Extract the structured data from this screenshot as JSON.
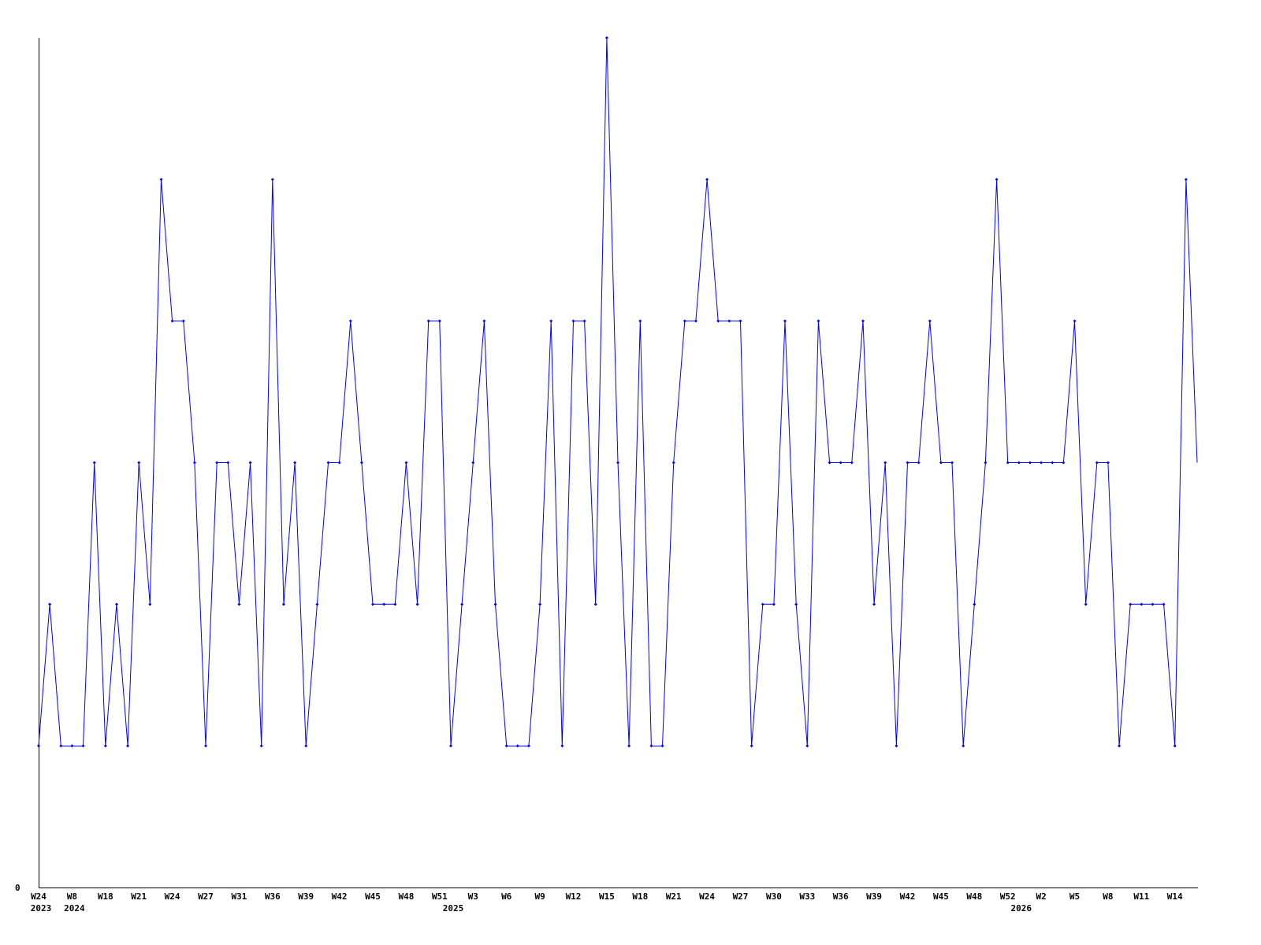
{
  "chart_data": {
    "type": "line",
    "title": "",
    "xlabel": "",
    "ylabel": "",
    "ylim": [
      0,
      6
    ],
    "y_tick_labels": [
      "0"
    ],
    "grid": false,
    "line_color": "#0000ff",
    "axis_color": "#000000",
    "values": [
      1,
      2,
      1,
      1,
      1,
      3,
      1,
      2,
      1,
      3,
      2,
      5,
      4,
      4,
      3,
      1,
      3,
      3,
      2,
      3,
      1,
      5,
      2,
      3,
      1,
      2,
      3,
      3,
      4,
      3,
      2,
      2,
      2,
      3,
      2,
      4,
      4,
      1,
      2,
      3,
      4,
      2,
      1,
      1,
      1,
      2,
      4,
      1,
      4,
      4,
      2,
      6,
      3,
      1,
      4,
      1,
      1,
      3,
      4,
      4,
      5,
      4,
      4,
      4,
      1,
      2,
      2,
      4,
      2,
      1,
      4,
      3,
      3,
      3,
      4,
      2,
      3,
      1,
      3,
      3,
      4,
      3,
      3,
      1,
      2,
      3,
      5,
      3,
      3,
      3,
      3,
      3,
      3,
      4,
      2,
      3,
      3,
      1,
      2,
      2,
      2,
      2,
      1,
      5,
      3
    ],
    "x_ticks": [
      {
        "index": 0,
        "label": "W24"
      },
      {
        "index": 3,
        "label": "W8"
      },
      {
        "index": 6,
        "label": "W18"
      },
      {
        "index": 9,
        "label": "W21"
      },
      {
        "index": 12,
        "label": "W24"
      },
      {
        "index": 15,
        "label": "W27"
      },
      {
        "index": 18,
        "label": "W31"
      },
      {
        "index": 21,
        "label": "W36"
      },
      {
        "index": 24,
        "label": "W39"
      },
      {
        "index": 27,
        "label": "W42"
      },
      {
        "index": 30,
        "label": "W45"
      },
      {
        "index": 33,
        "label": "W48"
      },
      {
        "index": 36,
        "label": "W51"
      },
      {
        "index": 39,
        "label": "W3"
      },
      {
        "index": 42,
        "label": "W6"
      },
      {
        "index": 45,
        "label": "W9"
      },
      {
        "index": 48,
        "label": "W12"
      },
      {
        "index": 51,
        "label": "W15"
      },
      {
        "index": 54,
        "label": "W18"
      },
      {
        "index": 57,
        "label": "W21"
      },
      {
        "index": 60,
        "label": "W24"
      },
      {
        "index": 63,
        "label": "W27"
      },
      {
        "index": 66,
        "label": "W30"
      },
      {
        "index": 69,
        "label": "W33"
      },
      {
        "index": 72,
        "label": "W36"
      },
      {
        "index": 75,
        "label": "W39"
      },
      {
        "index": 78,
        "label": "W42"
      },
      {
        "index": 81,
        "label": "W45"
      },
      {
        "index": 84,
        "label": "W48"
      },
      {
        "index": 87,
        "label": "W52"
      },
      {
        "index": 90,
        "label": "W2"
      },
      {
        "index": 93,
        "label": "W5"
      },
      {
        "index": 96,
        "label": "W8"
      },
      {
        "index": 99,
        "label": "W11"
      },
      {
        "index": 102,
        "label": "W14"
      }
    ],
    "year_labels": [
      {
        "index": 0,
        "label": "2023"
      },
      {
        "index": 3,
        "label": "2024"
      },
      {
        "index": 37,
        "label": "2025"
      },
      {
        "index": 88,
        "label": "2026"
      }
    ]
  }
}
